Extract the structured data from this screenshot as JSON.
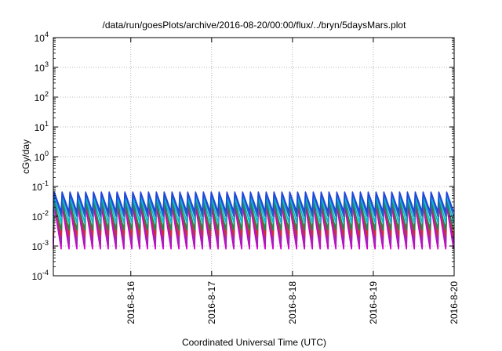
{
  "chart_data": {
    "type": "line",
    "title": "/data/run/goesPlots/archive/2016-08-20/00:00/flux/../bryn/5daysMars.plot",
    "xlabel": "Coordinated Universal Time (UTC)",
    "ylabel": "cGy/day",
    "y_scale": "log",
    "ylim": [
      0.0001,
      10000
    ],
    "y_ticks": [
      {
        "base": "10",
        "exp": "-4",
        "value": 0.0001
      },
      {
        "base": "10",
        "exp": "-3",
        "value": 0.001
      },
      {
        "base": "10",
        "exp": "-2",
        "value": 0.01
      },
      {
        "base": "10",
        "exp": "-1",
        "value": 0.1
      },
      {
        "base": "10",
        "exp": "0",
        "value": 1
      },
      {
        "base": "10",
        "exp": "1",
        "value": 10
      },
      {
        "base": "10",
        "exp": "2",
        "value": 100
      },
      {
        "base": "10",
        "exp": "3",
        "value": 1000
      },
      {
        "base": "10",
        "exp": "4",
        "value": 10000
      }
    ],
    "xlim": [
      "2016-08-15T01:00",
      "2016-08-20T00:00"
    ],
    "x_ticks": [
      "2016-8-16",
      "2016-8-17",
      "2016-8-18",
      "2016-8-19",
      "2016-8-20"
    ],
    "x_tick_values": [
      "2016-08-16",
      "2016-08-17",
      "2016-08-18",
      "2016-08-19",
      "2016-08-20"
    ],
    "grid": true,
    "legend": "none",
    "cycle_hours": 2.33,
    "series": [
      {
        "color": "#cc00cc",
        "peak": 0.022,
        "trough": 0.0008
      },
      {
        "color": "#6a1b9a",
        "peak": 0.05,
        "trough": 0.0015
      },
      {
        "color": "#9c27b0",
        "peak": 0.04,
        "trough": 0.0012
      },
      {
        "color": "#d32f2f",
        "peak": 0.032,
        "trough": 0.0022
      },
      {
        "color": "#1a8a4a",
        "peak": 0.03,
        "trough": 0.0035
      },
      {
        "color": "#00bcd4",
        "peak": 0.045,
        "trough": 0.006
      },
      {
        "color": "#1565c0",
        "peak": 0.06,
        "trough": 0.01
      },
      {
        "color": "#2244dd",
        "peak": 0.065,
        "trough": 0.014
      }
    ]
  }
}
